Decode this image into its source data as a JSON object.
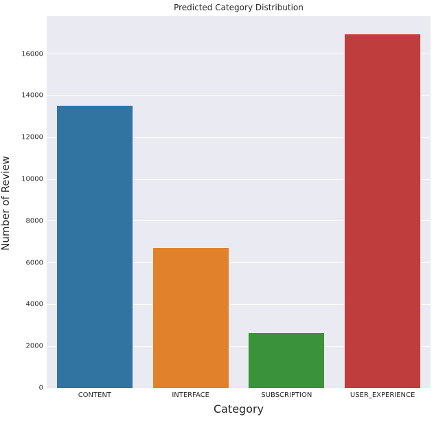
{
  "chart_data": {
    "type": "bar",
    "title": "Predicted Category Distribution",
    "xlabel": "Category",
    "ylabel": "Number of Review",
    "categories": [
      "CONTENT",
      "INTERFACE",
      "SUBSCRIPTION",
      "USER_EXPERIENCE"
    ],
    "values": [
      13540,
      6740,
      2660,
      16960
    ],
    "bar_colors": [
      "#3274a1",
      "#e1812c",
      "#3a923a",
      "#c03d3e"
    ],
    "ylim": [
      0,
      17830
    ],
    "yticks": [
      0,
      2000,
      4000,
      6000,
      8000,
      10000,
      12000,
      14000,
      16000
    ],
    "grid": true,
    "legend": "none",
    "plot_background": "#eaeaf2",
    "gridline_color": "#ffffff",
    "text_color": "#262626",
    "bar_width_fraction": 0.8
  }
}
